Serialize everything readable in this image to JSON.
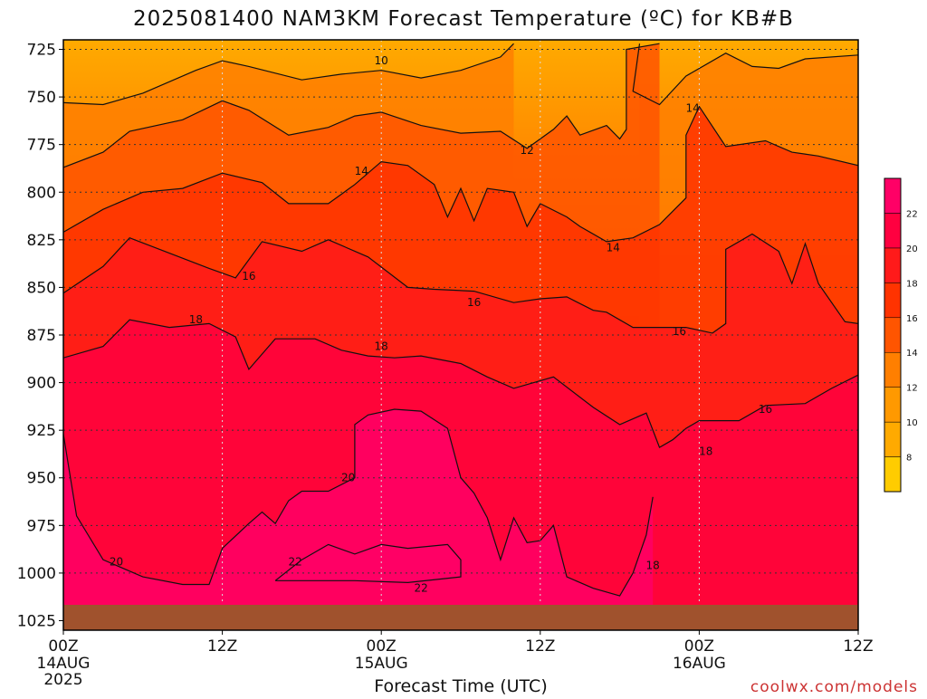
{
  "title": "2025081400 NAM3KM Forecast Temperature (ºC) for KB#B",
  "credit": "coolwx.com/models",
  "chart_data": {
    "type": "heatmap",
    "title": "2025081400 NAM3KM Forecast Temperature (ºC) for KB#B",
    "xlabel": "Forecast Time (UTC)",
    "ylabel": "",
    "ylim": [
      1030,
      720
    ],
    "y_ticks": [
      "725",
      "750",
      "775",
      "800",
      "825",
      "850",
      "875",
      "900",
      "925",
      "950",
      "975",
      "1000",
      "1025"
    ],
    "x_ticks": [
      {
        "label": "00Z",
        "date": "14AUG",
        "year": "2025"
      },
      {
        "label": "12Z",
        "date": "",
        "year": ""
      },
      {
        "label": "00Z",
        "date": "15AUG",
        "year": ""
      },
      {
        "label": "12Z",
        "date": "",
        "year": ""
      },
      {
        "label": "00Z",
        "date": "16AUG",
        "year": ""
      },
      {
        "label": "12Z",
        "date": "",
        "year": ""
      }
    ],
    "contour_levels": [
      8,
      10,
      12,
      14,
      16,
      18,
      20,
      22
    ],
    "colorbar": {
      "ticks": [
        "8",
        "10",
        "12",
        "14",
        "16",
        "18",
        "20",
        "22"
      ],
      "colors": [
        "#ffcc00",
        "#ffaa00",
        "#ff9900",
        "#ff7f00",
        "#ff5500",
        "#ff3300",
        "#ff1a1a",
        "#ff0040",
        "#ff0066"
      ]
    },
    "contour_labels": [
      {
        "text": "10",
        "hour": 24,
        "pressure": 731
      },
      {
        "text": "12",
        "hour": 35,
        "pressure": 778
      },
      {
        "text": "14",
        "hour": 47.5,
        "pressure": 756
      },
      {
        "text": "14",
        "hour": 22.5,
        "pressure": 789
      },
      {
        "text": "14",
        "hour": 41.5,
        "pressure": 829
      },
      {
        "text": "16",
        "hour": 14,
        "pressure": 844
      },
      {
        "text": "16",
        "hour": 31,
        "pressure": 858
      },
      {
        "text": "16",
        "hour": 46.5,
        "pressure": 873
      },
      {
        "text": "16",
        "hour": 53,
        "pressure": 914
      },
      {
        "text": "18",
        "hour": 10,
        "pressure": 867
      },
      {
        "text": "18",
        "hour": 24,
        "pressure": 881
      },
      {
        "text": "18",
        "hour": 48.5,
        "pressure": 936
      },
      {
        "text": "18",
        "hour": 44.5,
        "pressure": 996
      },
      {
        "text": "20",
        "hour": 21.5,
        "pressure": 950
      },
      {
        "text": "20",
        "hour": 4,
        "pressure": 994
      },
      {
        "text": "22",
        "hour": 17.5,
        "pressure": 994
      },
      {
        "text": "22",
        "hour": 27,
        "pressure": 1008
      }
    ],
    "series": [
      {
        "temperature": 10,
        "points": [
          [
            0,
            753
          ],
          [
            3,
            754
          ],
          [
            6,
            748
          ],
          [
            10,
            736
          ],
          [
            12,
            731
          ],
          [
            14,
            734
          ],
          [
            18,
            741
          ],
          [
            21,
            738
          ],
          [
            24,
            736
          ],
          [
            27,
            740
          ],
          [
            30,
            736
          ],
          [
            33,
            729
          ],
          [
            34,
            722
          ]
        ]
      },
      {
        "temperature": 10,
        "points": [
          [
            43.5,
            722
          ],
          [
            43,
            747
          ],
          [
            45,
            754
          ],
          [
            47,
            739
          ],
          [
            50,
            727
          ],
          [
            52,
            734
          ],
          [
            54,
            735
          ],
          [
            56,
            730
          ],
          [
            60,
            728
          ]
        ]
      },
      {
        "temperature": 12,
        "points": [
          [
            0,
            787
          ],
          [
            3,
            779
          ],
          [
            5,
            768
          ],
          [
            9,
            762
          ],
          [
            12,
            752
          ],
          [
            14,
            757
          ],
          [
            17,
            770
          ],
          [
            20,
            766
          ],
          [
            22,
            760
          ],
          [
            24,
            758
          ],
          [
            27,
            765
          ],
          [
            30,
            769
          ],
          [
            33,
            768
          ],
          [
            35,
            777
          ],
          [
            37,
            767
          ],
          [
            38,
            760
          ],
          [
            39,
            770
          ],
          [
            41,
            765
          ],
          [
            42,
            772
          ],
          [
            42.5,
            767
          ],
          [
            42.5,
            725
          ],
          [
            45,
            722
          ]
        ]
      },
      {
        "temperature": 14,
        "points": [
          [
            0,
            821
          ],
          [
            3,
            809
          ],
          [
            6,
            800
          ],
          [
            9,
            798
          ],
          [
            12,
            790
          ],
          [
            15,
            795
          ],
          [
            17,
            806
          ],
          [
            20,
            806
          ],
          [
            22,
            796
          ],
          [
            24,
            784
          ],
          [
            26,
            786
          ],
          [
            28,
            796
          ],
          [
            29,
            813
          ],
          [
            30,
            798
          ],
          [
            31,
            815
          ],
          [
            32,
            798
          ],
          [
            34,
            800
          ],
          [
            35,
            818
          ],
          [
            36,
            806
          ],
          [
            38,
            813
          ],
          [
            39,
            818
          ],
          [
            41,
            826
          ],
          [
            43,
            824
          ],
          [
            45,
            817
          ],
          [
            47,
            803
          ],
          [
            47,
            770
          ],
          [
            48,
            755
          ],
          [
            50,
            776
          ],
          [
            53,
            773
          ],
          [
            55,
            779
          ],
          [
            57,
            781
          ],
          [
            60,
            786
          ]
        ]
      },
      {
        "temperature": 16,
        "points": [
          [
            0,
            853
          ],
          [
            3,
            839
          ],
          [
            5,
            824
          ],
          [
            8,
            832
          ],
          [
            11,
            840
          ],
          [
            13,
            845
          ],
          [
            15,
            826
          ],
          [
            18,
            831
          ],
          [
            20,
            825
          ],
          [
            23,
            834
          ],
          [
            26,
            850
          ],
          [
            28,
            851
          ],
          [
            31,
            852
          ],
          [
            34,
            858
          ],
          [
            36,
            856
          ],
          [
            38,
            855
          ],
          [
            40,
            862
          ],
          [
            41,
            863
          ],
          [
            43,
            871
          ],
          [
            45,
            871
          ],
          [
            47,
            871
          ],
          [
            49,
            874
          ],
          [
            50,
            869
          ],
          [
            50,
            830
          ],
          [
            52,
            822
          ],
          [
            54,
            831
          ],
          [
            55,
            848
          ],
          [
            56,
            827
          ],
          [
            57,
            848
          ],
          [
            59,
            868
          ],
          [
            60,
            869
          ]
        ]
      },
      {
        "temperature": 18,
        "points": [
          [
            0,
            887
          ],
          [
            3,
            881
          ],
          [
            5,
            867
          ],
          [
            8,
            871
          ],
          [
            11,
            869
          ],
          [
            13,
            876
          ],
          [
            14,
            893
          ],
          [
            16,
            877
          ],
          [
            19,
            877
          ],
          [
            21,
            883
          ],
          [
            23,
            886
          ],
          [
            25,
            887
          ],
          [
            27,
            886
          ],
          [
            30,
            890
          ],
          [
            32,
            897
          ],
          [
            34,
            903
          ],
          [
            37,
            897
          ],
          [
            40,
            913
          ],
          [
            42,
            922
          ],
          [
            44,
            916
          ],
          [
            45,
            934
          ],
          [
            46,
            930
          ],
          [
            47,
            924
          ],
          [
            48,
            920
          ],
          [
            51,
            920
          ],
          [
            53,
            912
          ],
          [
            56,
            911
          ],
          [
            58,
            903
          ],
          [
            60,
            896
          ]
        ]
      },
      {
        "temperature": 20,
        "points": [
          [
            0,
            927
          ],
          [
            1,
            970
          ],
          [
            3,
            993
          ],
          [
            6,
            1002
          ],
          [
            9,
            1006
          ],
          [
            11,
            1006
          ],
          [
            12,
            987
          ],
          [
            14,
            974
          ],
          [
            15,
            968
          ],
          [
            16,
            974
          ],
          [
            17,
            962
          ],
          [
            18,
            957
          ],
          [
            20,
            957
          ],
          [
            22,
            950
          ],
          [
            22,
            922
          ],
          [
            23,
            917
          ],
          [
            25,
            914
          ],
          [
            27,
            915
          ],
          [
            29,
            924
          ],
          [
            30,
            950
          ],
          [
            31,
            958
          ],
          [
            32,
            971
          ],
          [
            33,
            993
          ],
          [
            34,
            971
          ],
          [
            35,
            984
          ],
          [
            36,
            983
          ],
          [
            37,
            975
          ],
          [
            38,
            1002
          ],
          [
            40,
            1008
          ],
          [
            42,
            1012
          ],
          [
            43,
            1000
          ],
          [
            44,
            980
          ],
          [
            44.5,
            960
          ]
        ]
      },
      {
        "temperature": 22,
        "points": [
          [
            16,
            1004
          ],
          [
            18,
            993
          ],
          [
            20,
            985
          ],
          [
            22,
            990
          ],
          [
            24,
            985
          ],
          [
            26,
            987
          ],
          [
            29,
            985
          ],
          [
            30,
            993
          ],
          [
            30,
            1002
          ],
          [
            26,
            1005
          ],
          [
            22,
            1004
          ],
          [
            18,
            1004
          ],
          [
            16,
            1004
          ]
        ]
      }
    ]
  }
}
